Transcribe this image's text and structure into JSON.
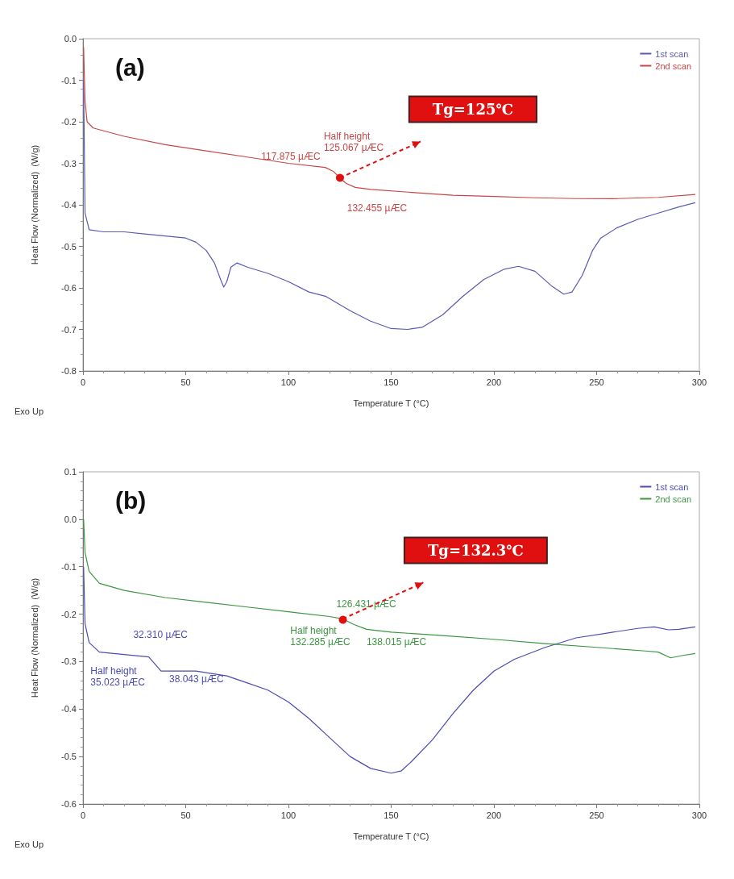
{
  "chart_data": [
    {
      "type": "line",
      "xlabel": "Temperature T (°C)",
      "ylabel": "Heat Flow (Normalized)  (W/g)",
      "xlim": [
        0,
        300
      ],
      "xticks": [
        0,
        50,
        100,
        150,
        200,
        250,
        300
      ],
      "ylim": [
        -0.8,
        0
      ],
      "yticks": [
        -0.8,
        -0.7,
        -0.6,
        -0.5,
        -0.4,
        -0.3,
        -0.2,
        -0.1,
        {
          "value": 0,
          "label": "0.0"
        }
      ],
      "grid": false,
      "legend": "top right",
      "marker": "none",
      "line_style": "solid",
      "annotations": [
        "(a)",
        "Exo Up",
        "Tg=125℃",
        {
          "text": "Half height\n125.067 µÆC",
          "x": 125.067,
          "y": -0.335
        },
        {
          "text": "117.875 µÆC",
          "x": 117.875,
          "y": -0.31
        },
        {
          "text": "132.455 µÆC",
          "x": 132.455,
          "y": -0.358
        }
      ],
      "series": [
        {
          "name": "1st scan",
          "color": "#5a5ab4",
          "x": [
            0.3,
            1,
            3,
            10,
            20,
            30,
            40,
            50,
            55,
            60,
            64,
            67,
            68.5,
            70,
            72,
            75,
            80,
            90,
            100,
            110,
            118,
            130,
            140,
            150,
            158,
            165,
            175,
            185,
            195,
            205,
            212,
            220,
            228,
            234,
            238,
            243,
            248,
            252,
            260,
            270,
            280,
            290,
            298
          ],
          "values": [
            -0.1,
            -0.42,
            -0.46,
            -0.465,
            -0.465,
            -0.47,
            -0.475,
            -0.48,
            -0.49,
            -0.51,
            -0.54,
            -0.58,
            -0.598,
            -0.585,
            -0.55,
            -0.54,
            -0.55,
            -0.565,
            -0.585,
            -0.61,
            -0.62,
            -0.655,
            -0.68,
            -0.698,
            -0.7,
            -0.695,
            -0.665,
            -0.62,
            -0.58,
            -0.555,
            -0.548,
            -0.56,
            -0.595,
            -0.615,
            -0.61,
            -0.57,
            -0.51,
            -0.48,
            -0.455,
            -0.435,
            -0.42,
            -0.405,
            -0.395
          ]
        },
        {
          "name": "2nd scan",
          "color": "#c84646",
          "x": [
            0.3,
            1,
            2,
            5,
            20,
            40,
            60,
            80,
            100,
            117.9,
            122,
            125,
            128,
            132.5,
            140,
            160,
            180,
            200,
            220,
            240,
            260,
            280,
            298
          ],
          "values": [
            -0.02,
            -0.15,
            -0.2,
            -0.215,
            -0.235,
            -0.255,
            -0.27,
            -0.285,
            -0.3,
            -0.31,
            -0.32,
            -0.335,
            -0.348,
            -0.358,
            -0.363,
            -0.37,
            -0.377,
            -0.38,
            -0.383,
            -0.385,
            -0.385,
            -0.382,
            -0.375
          ]
        }
      ]
    },
    {
      "type": "line",
      "xlabel": "Temperature T (°C)",
      "ylabel": "Heat Flow (Normalized)  (W/g)",
      "xlim": [
        0,
        300
      ],
      "xticks": [
        0,
        50,
        100,
        150,
        200,
        250,
        300
      ],
      "ylim": [
        -0.6,
        0.1
      ],
      "yticks": [
        -0.6,
        -0.5,
        -0.4,
        -0.3,
        -0.2,
        -0.1,
        {
          "value": 0,
          "label": "0.0"
        },
        0.1
      ],
      "grid": false,
      "legend": "top right",
      "marker": "none",
      "line_style": "solid",
      "annotations": [
        "(b)",
        "Exo Up",
        "Tg=132.3℃",
        {
          "text": "126.431 µÆC",
          "x": 126.431,
          "y": -0.21
        },
        {
          "text": "Half height\n132.285 µÆC",
          "x": 132.285,
          "y": -0.222
        },
        {
          "text": "138.015 µÆC",
          "x": 138.015,
          "y": -0.232
        },
        {
          "text": "32.310 µÆC",
          "x": 32.31,
          "y": -0.29
        },
        {
          "text": "Half height\n35.023 µÆC",
          "x": 35.023,
          "y": -0.305
        },
        {
          "text": "38.043 µÆC",
          "x": 38.043,
          "y": -0.32
        }
      ],
      "series": [
        {
          "name": "1st scan",
          "color": "#4b4bb4",
          "x": [
            0.3,
            1,
            3,
            8,
            20,
            32,
            35,
            38,
            45,
            55,
            70,
            80,
            90,
            100,
            110,
            120,
            130,
            140,
            150,
            155,
            160,
            170,
            180,
            190,
            200,
            210,
            225,
            240,
            255,
            270,
            278,
            285,
            290,
            298
          ],
          "values": [
            -0.1,
            -0.22,
            -0.26,
            -0.28,
            -0.285,
            -0.29,
            -0.305,
            -0.32,
            -0.32,
            -0.32,
            -0.33,
            -0.345,
            -0.36,
            -0.385,
            -0.42,
            -0.46,
            -0.5,
            -0.525,
            -0.535,
            -0.53,
            -0.51,
            -0.465,
            -0.41,
            -0.36,
            -0.32,
            -0.295,
            -0.27,
            -0.25,
            -0.24,
            -0.23,
            -0.227,
            -0.233,
            -0.232,
            -0.227
          ]
        },
        {
          "name": "2nd scan",
          "color": "#3c9640",
          "x": [
            0.3,
            1,
            3,
            8,
            20,
            40,
            60,
            80,
            100,
            120,
            126.4,
            132,
            138,
            150,
            175,
            200,
            225,
            250,
            275,
            280,
            286,
            292,
            298
          ],
          "values": [
            0,
            -0.07,
            -0.11,
            -0.135,
            -0.15,
            -0.165,
            -0.175,
            -0.185,
            -0.195,
            -0.205,
            -0.21,
            -0.222,
            -0.232,
            -0.238,
            -0.245,
            -0.253,
            -0.262,
            -0.27,
            -0.278,
            -0.28,
            -0.292,
            -0.287,
            -0.283
          ]
        }
      ]
    }
  ]
}
